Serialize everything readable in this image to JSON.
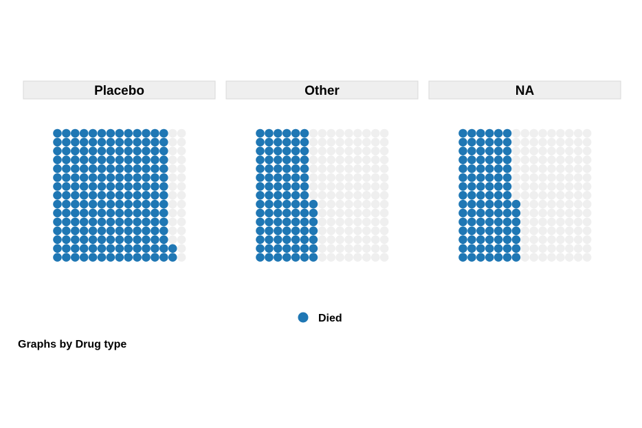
{
  "chart_data": {
    "type": "waffle",
    "grid": {
      "rows": 15,
      "cols": 15
    },
    "fill_order": "column-wise, starting at the bottom-left",
    "panels": [
      {
        "title": "Placebo",
        "died_dots": 197
      },
      {
        "title": "Other",
        "died_dots": 97
      },
      {
        "title": "NA",
        "died_dots": 97
      }
    ],
    "legend": {
      "items": [
        {
          "label": "Died",
          "color": "#1f77b4"
        }
      ],
      "placement": "bottom-center"
    },
    "note": "Graphs by Drug type"
  },
  "colors": {
    "filled": "#1f77b4",
    "empty": "#efefef",
    "title_strip": "#efefef",
    "title_strip_border": "#d9d9d9"
  }
}
